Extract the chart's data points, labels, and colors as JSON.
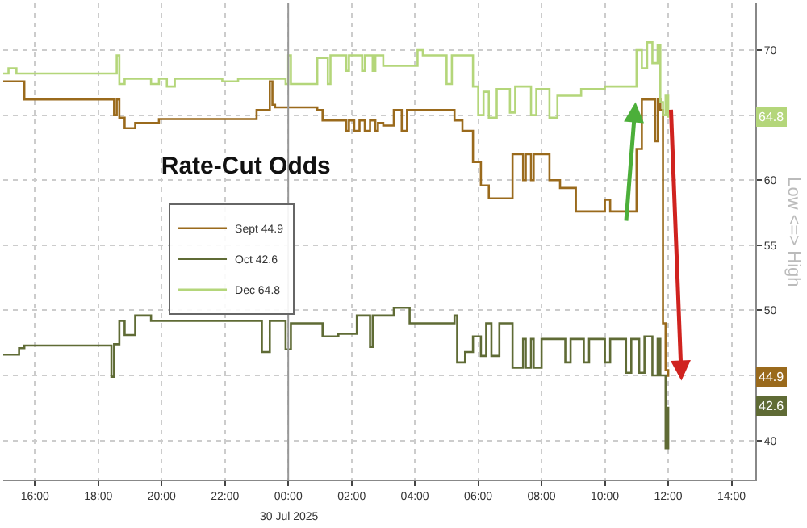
{
  "chart_data": {
    "type": "step",
    "title": "Rate-Cut Odds",
    "xlim": [
      "2025-07-29T15:00",
      "2025-07-30T14:45"
    ],
    "xticks": [
      {
        "value": "2025-07-29T16:00",
        "label": "16:00"
      },
      {
        "value": "2025-07-29T18:00",
        "label": "18:00"
      },
      {
        "value": "2025-07-29T20:00",
        "label": "20:00"
      },
      {
        "value": "2025-07-29T22:00",
        "label": "22:00"
      },
      {
        "value": "2025-07-30T00:00",
        "label": "00:00"
      },
      {
        "value": "2025-07-30T02:00",
        "label": "02:00"
      },
      {
        "value": "2025-07-30T04:00",
        "label": "04:00"
      },
      {
        "value": "2025-07-30T06:00",
        "label": "06:00"
      },
      {
        "value": "2025-07-30T08:00",
        "label": "08:00"
      },
      {
        "value": "2025-07-30T10:00",
        "label": "10:00"
      },
      {
        "value": "2025-07-30T12:00",
        "label": "12:00"
      },
      {
        "value": "2025-07-30T14:00",
        "label": "14:00"
      }
    ],
    "ylim": [
      37,
      73.6
    ],
    "yticks": [
      40,
      {
        "value": 45,
        "label": null
      },
      50,
      55,
      60,
      {
        "value": 65,
        "label": null
      },
      70
    ],
    "ref_lines": [
      {
        "axis": "x",
        "value": "2025-07-30T00:00",
        "color": "#999999"
      }
    ],
    "grid": true,
    "legend": "left",
    "line_style": "solid",
    "marker": "none",
    "series": [
      {
        "name": "Sept 44.9",
        "color": "#9a6a1c",
        "x": [
          "2025-07-29T15:00",
          "2025-07-29T15:40",
          "2025-07-29T18:30",
          "2025-07-29T18:35",
          "2025-07-29T18:40",
          "2025-07-29T18:50",
          "2025-07-29T19:10",
          "2025-07-29T19:55",
          "2025-07-29T23:00",
          "2025-07-29T23:25",
          "2025-07-29T23:30",
          "2025-07-29T23:35",
          "2025-07-30T00:55",
          "2025-07-30T01:05",
          "2025-07-30T01:50",
          "2025-07-30T01:55",
          "2025-07-30T02:05",
          "2025-07-30T02:15",
          "2025-07-30T02:25",
          "2025-07-30T02:35",
          "2025-07-30T02:45",
          "2025-07-30T02:50",
          "2025-07-30T03:00",
          "2025-07-30T03:20",
          "2025-07-30T03:35",
          "2025-07-30T03:45",
          "2025-07-30T05:15",
          "2025-07-30T05:30",
          "2025-07-30T05:50",
          "2025-07-30T06:05",
          "2025-07-30T06:20",
          "2025-07-30T07:05",
          "2025-07-30T07:25",
          "2025-07-30T07:30",
          "2025-07-30T07:40",
          "2025-07-30T07:45",
          "2025-07-30T08:15",
          "2025-07-30T08:35",
          "2025-07-30T09:05",
          "2025-07-30T10:00",
          "2025-07-30T10:10",
          "2025-07-30T11:00",
          "2025-07-30T11:10",
          "2025-07-30T11:35",
          "2025-07-30T11:40",
          "2025-07-30T11:45",
          "2025-07-30T11:50",
          "2025-07-30T11:55",
          "2025-07-30T12:00"
        ],
        "values": [
          67.6,
          66.2,
          65,
          66.2,
          64.8,
          64,
          64.4,
          64.7,
          65.4,
          67.6,
          65.8,
          65.6,
          65.4,
          64.6,
          63.8,
          64.6,
          63.8,
          64.6,
          63.8,
          64.6,
          63.8,
          64.4,
          64.2,
          65.4,
          63.8,
          65.4,
          64.6,
          63.8,
          61.4,
          59.6,
          58.6,
          62,
          60,
          62,
          60,
          62,
          60,
          59.4,
          57.6,
          58.5,
          57.6,
          62.4,
          66.2,
          63,
          66.2,
          65.4,
          49,
          45.4,
          44.9
        ]
      },
      {
        "name": "Oct 42.6",
        "color": "#5f6b35",
        "x": [
          "2025-07-29T15:00",
          "2025-07-29T15:30",
          "2025-07-29T15:40",
          "2025-07-29T18:25",
          "2025-07-29T18:30",
          "2025-07-29T18:40",
          "2025-07-29T18:50",
          "2025-07-29T19:10",
          "2025-07-29T19:40",
          "2025-07-29T23:10",
          "2025-07-29T23:25",
          "2025-07-29T23:55",
          "2025-07-30T00:05",
          "2025-07-30T01:05",
          "2025-07-30T01:35",
          "2025-07-30T02:10",
          "2025-07-30T02:35",
          "2025-07-30T02:40",
          "2025-07-30T03:20",
          "2025-07-30T03:50",
          "2025-07-30T05:15",
          "2025-07-30T05:20",
          "2025-07-30T05:35",
          "2025-07-30T05:50",
          "2025-07-30T06:05",
          "2025-07-30T06:15",
          "2025-07-30T06:25",
          "2025-07-30T06:40",
          "2025-07-30T07:05",
          "2025-07-30T07:25",
          "2025-07-30T07:30",
          "2025-07-30T07:40",
          "2025-07-30T07:45",
          "2025-07-30T08:00",
          "2025-07-30T08:45",
          "2025-07-30T08:55",
          "2025-07-30T09:20",
          "2025-07-30T09:30",
          "2025-07-30T10:00",
          "2025-07-30T10:10",
          "2025-07-30T10:40",
          "2025-07-30T10:50",
          "2025-07-30T11:05",
          "2025-07-30T11:15",
          "2025-07-30T11:30",
          "2025-07-30T11:40",
          "2025-07-30T11:45",
          "2025-07-30T11:55",
          "2025-07-30T12:00"
        ],
        "values": [
          46.6,
          47.1,
          47.3,
          44.9,
          47.4,
          49.2,
          48.1,
          49.6,
          49.2,
          46.8,
          49.2,
          47,
          49,
          48,
          48.2,
          49.6,
          47.2,
          49.6,
          50.2,
          49,
          49.6,
          46,
          46.8,
          48,
          46.5,
          49,
          46.5,
          49,
          45.6,
          47.8,
          45.6,
          47.8,
          45.6,
          47.8,
          46,
          47.8,
          46,
          47.8,
          46,
          47.8,
          45.2,
          47.8,
          45.2,
          48,
          45,
          47.8,
          45,
          39.4,
          42.6
        ]
      },
      {
        "name": "Dec 64.8",
        "color": "#b4d67a",
        "x": [
          "2025-07-29T15:00",
          "2025-07-29T15:10",
          "2025-07-29T15:25",
          "2025-07-29T18:35",
          "2025-07-29T18:40",
          "2025-07-29T18:50",
          "2025-07-29T19:40",
          "2025-07-29T19:55",
          "2025-07-29T20:10",
          "2025-07-29T20:25",
          "2025-07-29T21:55",
          "2025-07-29T22:25",
          "2025-07-29T23:55",
          "2025-07-30T00:00",
          "2025-07-30T00:05",
          "2025-07-30T00:55",
          "2025-07-30T01:15",
          "2025-07-30T01:20",
          "2025-07-30T01:50",
          "2025-07-30T01:55",
          "2025-07-30T02:20",
          "2025-07-30T02:25",
          "2025-07-30T02:40",
          "2025-07-30T02:45",
          "2025-07-30T03:00",
          "2025-07-30T04:05",
          "2025-07-30T04:15",
          "2025-07-30T05:00",
          "2025-07-30T05:10",
          "2025-07-30T05:50",
          "2025-07-30T06:00",
          "2025-07-30T06:10",
          "2025-07-30T06:20",
          "2025-07-30T06:35",
          "2025-07-30T07:00",
          "2025-07-30T07:10",
          "2025-07-30T07:40",
          "2025-07-30T07:50",
          "2025-07-30T08:15",
          "2025-07-30T08:30",
          "2025-07-30T09:15",
          "2025-07-30T10:00",
          "2025-07-30T11:00",
          "2025-07-30T11:10",
          "2025-07-30T11:20",
          "2025-07-30T11:30",
          "2025-07-30T11:40",
          "2025-07-30T11:45",
          "2025-07-30T11:50",
          "2025-07-30T11:55",
          "2025-07-30T12:00"
        ],
        "values": [
          68.2,
          68.6,
          68.2,
          69.6,
          67.4,
          67.8,
          67.4,
          67.8,
          67.2,
          67.8,
          67.6,
          67.8,
          67.4,
          69.6,
          67.4,
          69.4,
          67.4,
          69.6,
          68.4,
          69.6,
          68.4,
          69.6,
          68.4,
          69.6,
          68.8,
          70,
          69.6,
          67.4,
          69.6,
          67.2,
          65,
          66.8,
          64.8,
          67,
          65.2,
          67.2,
          65,
          67,
          64.8,
          66.5,
          67,
          67.2,
          70,
          68.6,
          70.6,
          69,
          70.4,
          66,
          65,
          66.5,
          64.8
        ]
      }
    ],
    "annotations": [
      {
        "text": "44.9",
        "y": 44.9
      },
      {
        "text": "42.6",
        "y": 42.6
      },
      {
        "text": "64.8",
        "y": 64.8
      },
      "Low <=> High",
      "30 Jul 2025"
    ]
  }
}
